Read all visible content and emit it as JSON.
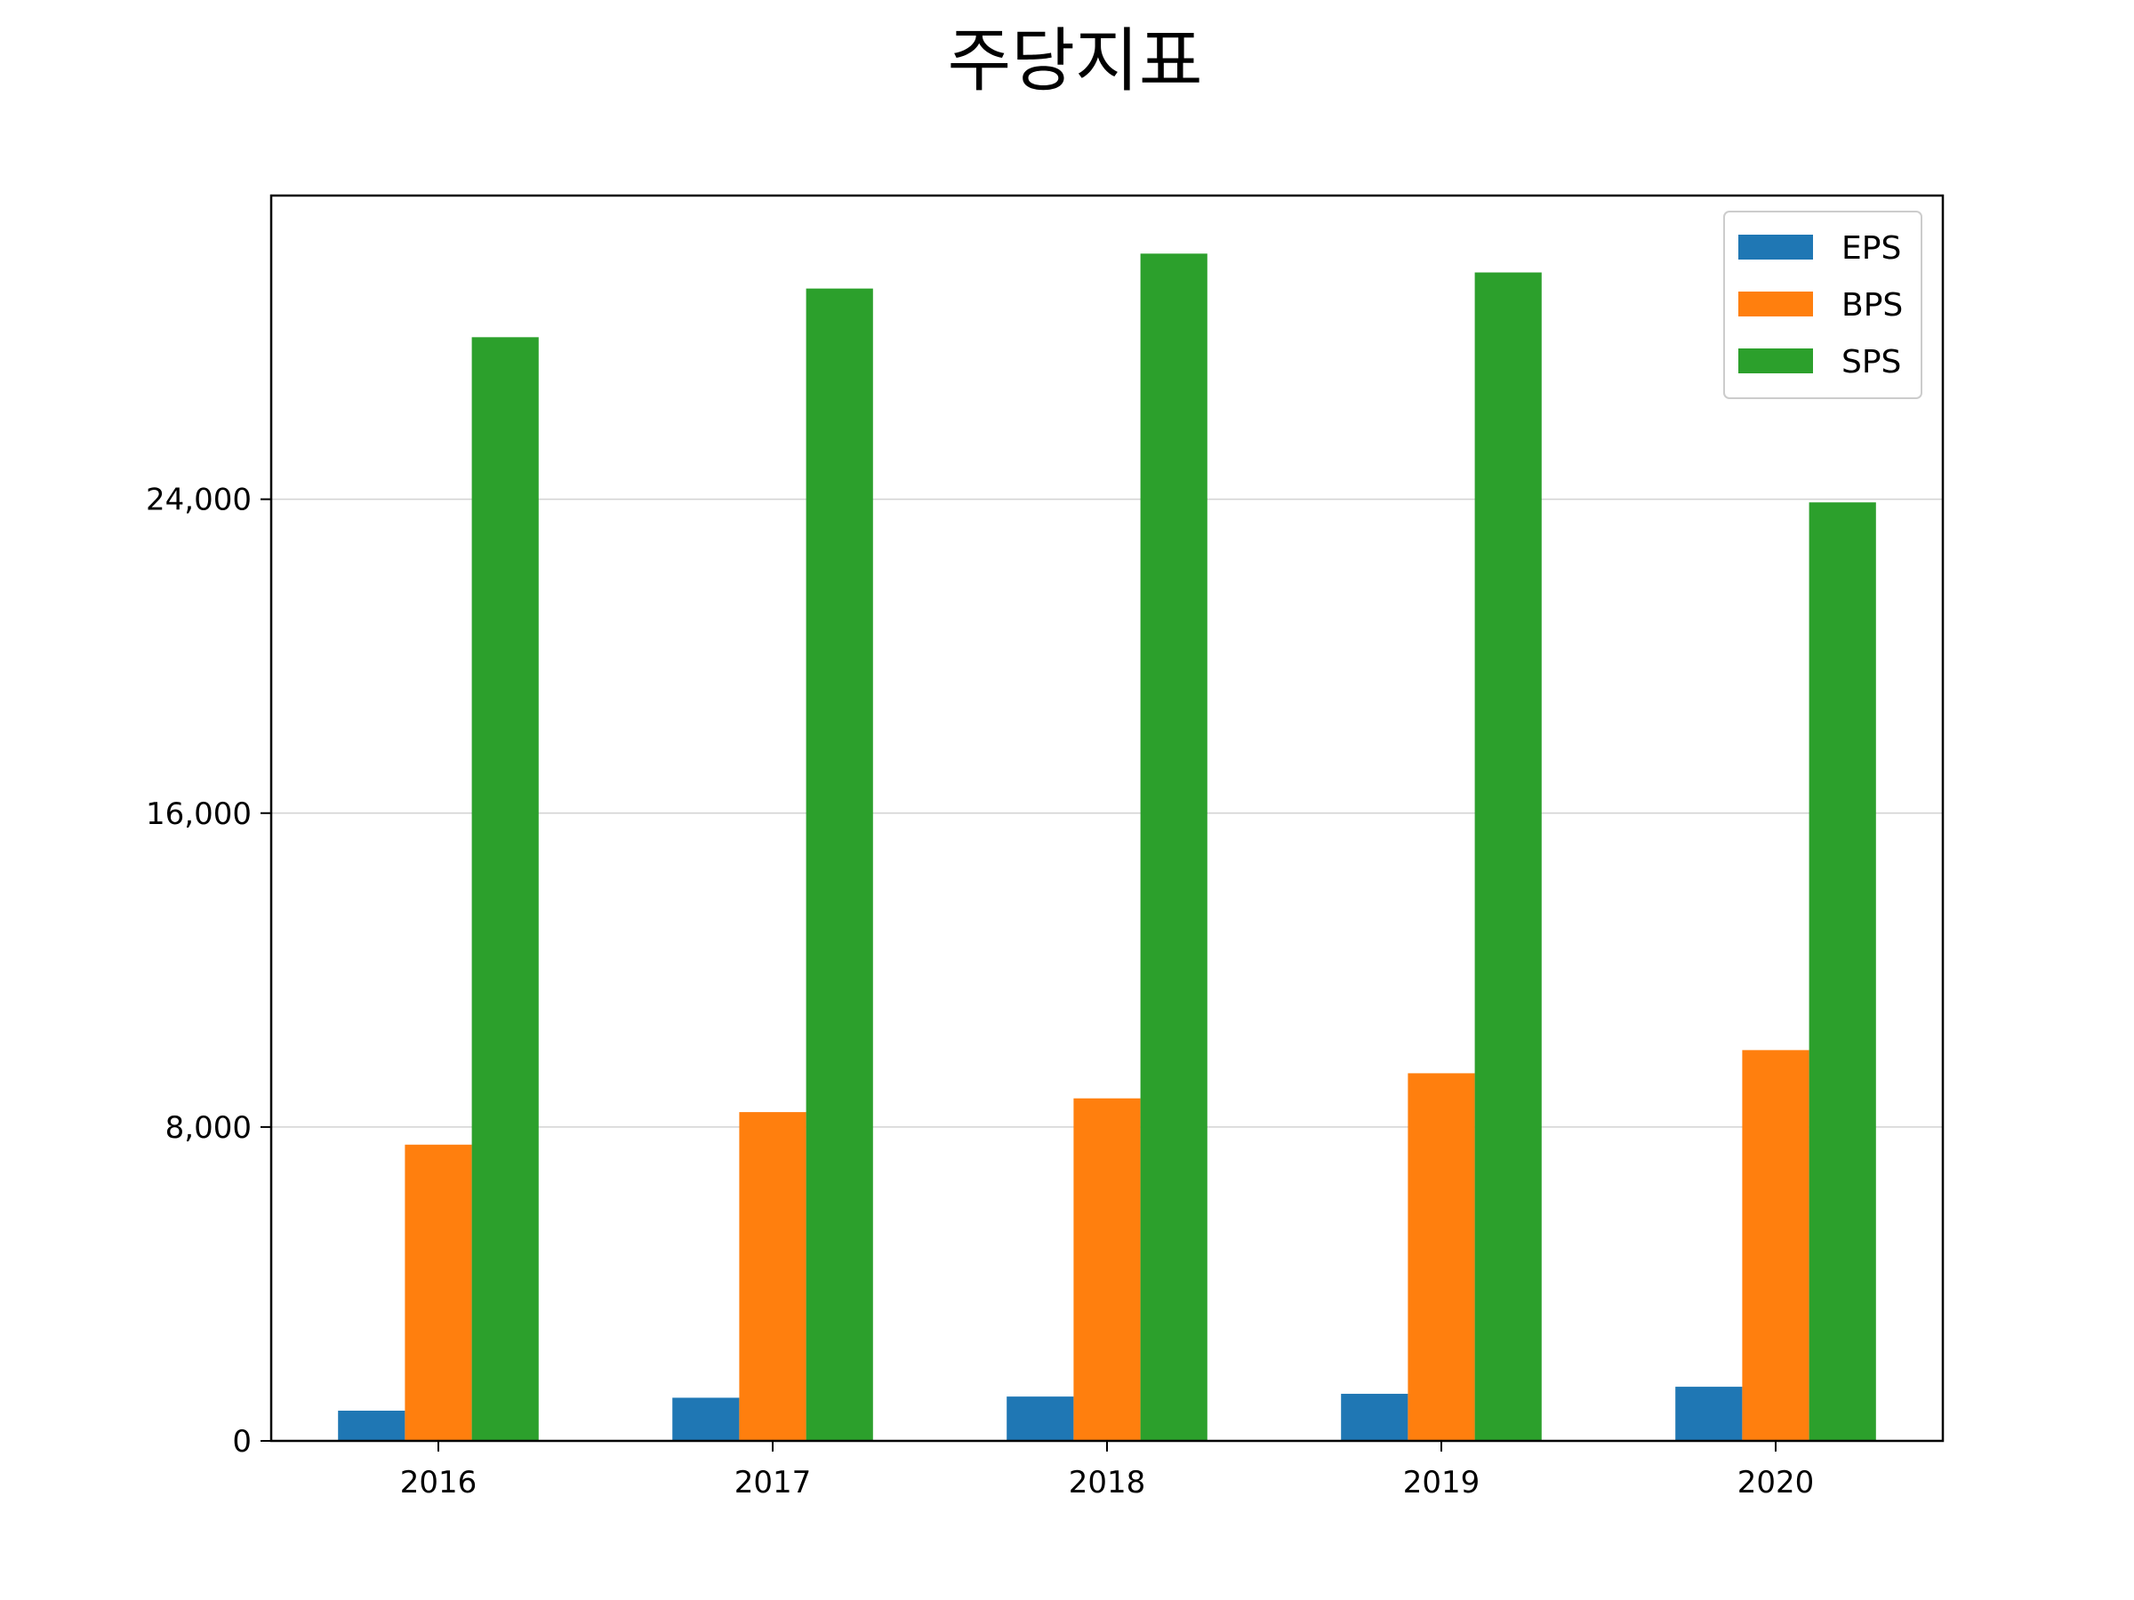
{
  "chart_data": {
    "type": "bar",
    "title": "주당지표",
    "xlabel": "",
    "ylabel": "",
    "categories": [
      "2016",
      "2017",
      "2018",
      "2019",
      "2020"
    ],
    "series": [
      {
        "name": "EPS",
        "color": "#1f77b4",
        "values": [
          770,
          1100,
          1130,
          1200,
          1380
        ]
      },
      {
        "name": "BPS",
        "color": "#ff7f0e",
        "values": [
          7550,
          8380,
          8730,
          9370,
          9960
        ]
      },
      {
        "name": "SPS",
        "color": "#2ca02c",
        "values": [
          28130,
          29370,
          30260,
          29780,
          23920
        ]
      }
    ],
    "ylim": [
      0,
      31740
    ],
    "yticks": [
      0,
      8000,
      16000,
      24000
    ],
    "ytick_labels": [
      "0",
      "8,000",
      "16,000",
      "24,000"
    ],
    "grid": {
      "y": true,
      "x": false
    },
    "legend_position": "top-right"
  }
}
